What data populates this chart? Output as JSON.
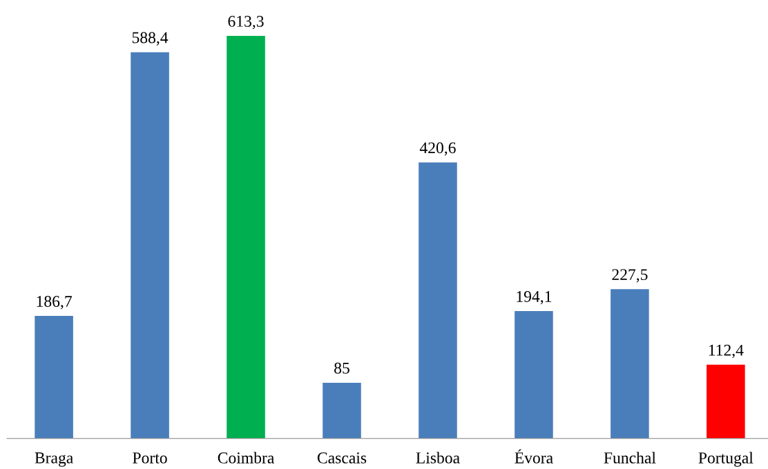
{
  "chart_data": {
    "type": "bar",
    "categories": [
      "Braga",
      "Porto",
      "Coimbra",
      "Cascais",
      "Lisboa",
      "Évora",
      "Funchal",
      "Portugal"
    ],
    "values": [
      186.7,
      588.4,
      613.3,
      85,
      420.6,
      194.1,
      227.5,
      112.4
    ],
    "value_labels": [
      "186,7",
      "588,4",
      "613,3",
      "85",
      "420,6",
      "194,1",
      "227,5",
      "112,4"
    ],
    "colors": [
      "#4a7ebb",
      "#4a7ebb",
      "#00b050",
      "#4a7ebb",
      "#4a7ebb",
      "#4a7ebb",
      "#4a7ebb",
      "#ff0000"
    ],
    "grid": false,
    "legend": false
  }
}
